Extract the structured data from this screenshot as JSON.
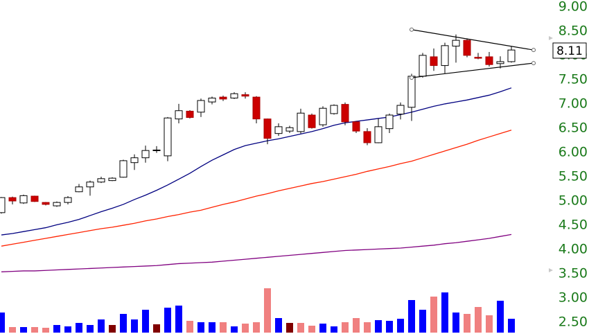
{
  "chart_data": {
    "type": "candlestick",
    "ylim": [
      2.26,
      9.14
    ],
    "yticks": [
      {
        "value": 2.5,
        "label": "2.50"
      },
      {
        "value": 3,
        "label": "3.00"
      },
      {
        "value": 3.5,
        "label": "3.50"
      },
      {
        "value": 4,
        "label": "4.00"
      },
      {
        "value": 4.5,
        "label": "4.50"
      },
      {
        "value": 5,
        "label": "5.00"
      },
      {
        "value": 5.5,
        "label": "5.50"
      },
      {
        "value": 6,
        "label": "6.00"
      },
      {
        "value": 6.5,
        "label": "6.50"
      },
      {
        "value": 7,
        "label": "7.00"
      },
      {
        "value": 7.5,
        "label": "7.50"
      },
      {
        "value": 8,
        "label": "8.00"
      },
      {
        "value": 8.5,
        "label": "8.50"
      },
      {
        "value": 9,
        "label": "9.00"
      }
    ],
    "up_color": "#ffffff",
    "down_color": "#cc0000",
    "candles": {
      "open": [
        4.76,
        5.07,
        4.96,
        5.1,
        4.97,
        4.9,
        4.97,
        5.19,
        5.29,
        5.39,
        5.42,
        5.49,
        5.79,
        5.89,
        6.04,
        5.93,
        6.69,
        6.85,
        6.83,
        7.04,
        7.14,
        7.12,
        7.19,
        7.14,
        6.69,
        6.39,
        6.44,
        6.43,
        6.77,
        6.57,
        6.8,
        6.99,
        6.63,
        6.43,
        6.2,
        6.49,
        6.79,
        6.93,
        7.57,
        7.97,
        7.79,
        8.19,
        8.31,
        7.96,
        7.97,
        7.83,
        7.87
      ],
      "high": [
        5.08,
        5.09,
        5.13,
        5.11,
        4.98,
        4.99,
        5.1,
        5.35,
        5.42,
        5.5,
        5.49,
        5.85,
        5.96,
        6.14,
        6.13,
        6.73,
        7.0,
        6.87,
        7.11,
        7.15,
        7.17,
        7.24,
        7.24,
        7.16,
        6.7,
        6.6,
        6.55,
        6.9,
        6.8,
        6.95,
        6.99,
        7.03,
        6.65,
        6.5,
        6.7,
        6.8,
        7.03,
        7.62,
        8.05,
        8.14,
        8.26,
        8.43,
        8.35,
        8.05,
        8.07,
        7.98,
        8.19
      ],
      "low": [
        4.74,
        4.93,
        4.94,
        4.98,
        4.91,
        4.88,
        4.93,
        5.18,
        5.11,
        5.37,
        5.41,
        5.48,
        5.64,
        5.79,
        5.99,
        5.82,
        6.6,
        6.7,
        6.73,
        6.99,
        7.06,
        7.1,
        7.11,
        6.6,
        6.17,
        6.34,
        6.4,
        6.39,
        6.49,
        6.53,
        6.78,
        6.56,
        6.4,
        6.15,
        6.19,
        6.4,
        6.68,
        6.65,
        7.54,
        7.68,
        7.63,
        7.85,
        7.96,
        7.92,
        7.77,
        7.73,
        7.85
      ],
      "close": [
        5.07,
        5.0,
        5.11,
        4.99,
        4.93,
        4.97,
        5.07,
        5.29,
        5.39,
        5.46,
        5.47,
        5.83,
        5.89,
        6.04,
        6.05,
        6.71,
        6.86,
        6.72,
        7.07,
        7.12,
        7.1,
        7.21,
        7.16,
        6.69,
        6.29,
        6.53,
        6.51,
        6.81,
        6.51,
        6.91,
        6.97,
        6.63,
        6.44,
        6.2,
        6.53,
        6.77,
        6.97,
        7.57,
        8.0,
        7.79,
        8.2,
        8.31,
        8.0,
        7.94,
        7.81,
        7.87,
        8.11
      ]
    },
    "moving_averages": [
      {
        "color": "#000080",
        "values": [
          4.3,
          4.33,
          4.37,
          4.41,
          4.45,
          4.51,
          4.56,
          4.62,
          4.7,
          4.78,
          4.85,
          4.93,
          5.03,
          5.12,
          5.22,
          5.33,
          5.45,
          5.57,
          5.71,
          5.84,
          5.95,
          6.06,
          6.14,
          6.19,
          6.24,
          6.28,
          6.33,
          6.38,
          6.43,
          6.49,
          6.56,
          6.61,
          6.64,
          6.67,
          6.7,
          6.73,
          6.78,
          6.83,
          6.89,
          6.95,
          7.0,
          7.04,
          7.08,
          7.13,
          7.18,
          7.25,
          7.33
        ]
      },
      {
        "color": "#ff2200",
        "values": [
          4.07,
          4.11,
          4.15,
          4.19,
          4.23,
          4.27,
          4.31,
          4.35,
          4.39,
          4.43,
          4.46,
          4.5,
          4.54,
          4.59,
          4.63,
          4.68,
          4.72,
          4.77,
          4.81,
          4.87,
          4.93,
          4.98,
          5.04,
          5.1,
          5.15,
          5.21,
          5.26,
          5.31,
          5.36,
          5.4,
          5.45,
          5.5,
          5.55,
          5.61,
          5.66,
          5.71,
          5.77,
          5.82,
          5.89,
          5.96,
          6.03,
          6.1,
          6.17,
          6.25,
          6.32,
          6.39,
          6.46
        ]
      },
      {
        "color": "#800080",
        "values": [
          3.54,
          3.55,
          3.56,
          3.56,
          3.57,
          3.58,
          3.59,
          3.6,
          3.61,
          3.62,
          3.63,
          3.64,
          3.65,
          3.66,
          3.67,
          3.69,
          3.71,
          3.72,
          3.73,
          3.74,
          3.76,
          3.78,
          3.8,
          3.82,
          3.84,
          3.86,
          3.88,
          3.9,
          3.92,
          3.94,
          3.96,
          3.98,
          3.99,
          4.0,
          4.01,
          4.02,
          4.03,
          4.05,
          4.07,
          4.09,
          4.12,
          4.14,
          4.17,
          4.2,
          4.23,
          4.27,
          4.31
        ]
      }
    ],
    "volume": {
      "ylim": [
        0,
        70
      ],
      "values": [
        29,
        8,
        8,
        8,
        7,
        11,
        9,
        14,
        11,
        19,
        11,
        27,
        19,
        33,
        12,
        36,
        39,
        17,
        15,
        15,
        15,
        9,
        13,
        15,
        64,
        21,
        14,
        14,
        10,
        13,
        9,
        15,
        21,
        15,
        18,
        17,
        20,
        47,
        33,
        52,
        58,
        29,
        27,
        37,
        25,
        46,
        20
      ],
      "colors": [
        "#0000ff",
        "#f08080",
        "#0000ff",
        "#f08080",
        "#f08080",
        "#0000ff",
        "#0000ff",
        "#0000ff",
        "#0000ff",
        "#0000ff",
        "#800000",
        "#0000ff",
        "#0000ff",
        "#0000ff",
        "#800000",
        "#0000ff",
        "#0000ff",
        "#f08080",
        "#0000ff",
        "#0000ff",
        "#f08080",
        "#0000ff",
        "#f08080",
        "#f08080",
        "#f08080",
        "#0000ff",
        "#800000",
        "#f08080",
        "#f08080",
        "#0000ff",
        "#0000ff",
        "#f08080",
        "#f08080",
        "#f08080",
        "#0000ff",
        "#0000ff",
        "#0000ff",
        "#0000ff",
        "#0000ff",
        "#f08080",
        "#0000ff",
        "#0000ff",
        "#f08080",
        "#f08080",
        "#f08080",
        "#0000ff",
        "#0000ff"
      ]
    },
    "trendlines": [
      {
        "x": [
          37,
          48
        ],
        "y": [
          8.53,
          8.11
        ]
      },
      {
        "x": [
          37,
          48
        ],
        "y": [
          7.54,
          7.84
        ]
      }
    ],
    "last_price": 8.11
  }
}
